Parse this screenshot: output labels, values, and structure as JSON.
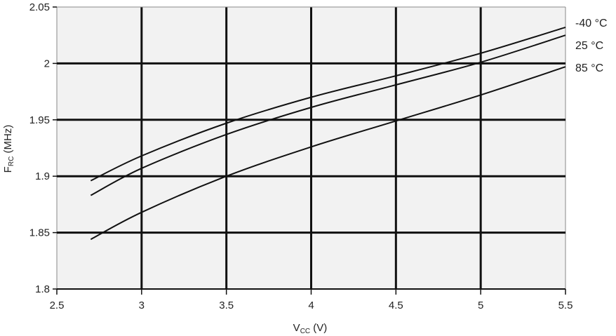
{
  "chart_data": {
    "type": "line",
    "title": "",
    "xlabel": {
      "main": "V",
      "sub": "CC",
      "unit": " (V)"
    },
    "ylabel": {
      "main": "F",
      "sub": "RC",
      "unit": " (MHz)"
    },
    "xlim": [
      2.5,
      5.5
    ],
    "ylim": [
      1.8,
      2.05
    ],
    "xticks": [
      2.5,
      3,
      3.5,
      4,
      4.5,
      5,
      5.5
    ],
    "xtick_labels": [
      "2.5",
      "3",
      "3.5",
      "4",
      "4.5",
      "5",
      "5.5"
    ],
    "yticks": [
      1.8,
      1.85,
      1.9,
      1.95,
      2.0,
      2.05
    ],
    "ytick_labels": [
      "1.8",
      "1.85",
      "1.9",
      "1.95",
      "2",
      "2.05"
    ],
    "grid": true,
    "legend_placement": "right",
    "series": [
      {
        "name": "-40 °C",
        "x": [
          2.7,
          3.0,
          3.5,
          4.0,
          4.5,
          5.0,
          5.5
        ],
        "y": [
          1.896,
          1.918,
          1.947,
          1.97,
          1.989,
          2.009,
          2.032
        ]
      },
      {
        "name": "25 °C",
        "x": [
          2.7,
          3.0,
          3.5,
          4.0,
          4.5,
          5.0,
          5.5
        ],
        "y": [
          1.883,
          1.907,
          1.937,
          1.961,
          1.981,
          2.001,
          2.025
        ]
      },
      {
        "name": "85 °C",
        "x": [
          2.7,
          3.0,
          3.5,
          4.0,
          4.5,
          5.0,
          5.5
        ],
        "y": [
          1.844,
          1.868,
          1.9,
          1.926,
          1.949,
          1.972,
          1.997
        ]
      }
    ]
  }
}
